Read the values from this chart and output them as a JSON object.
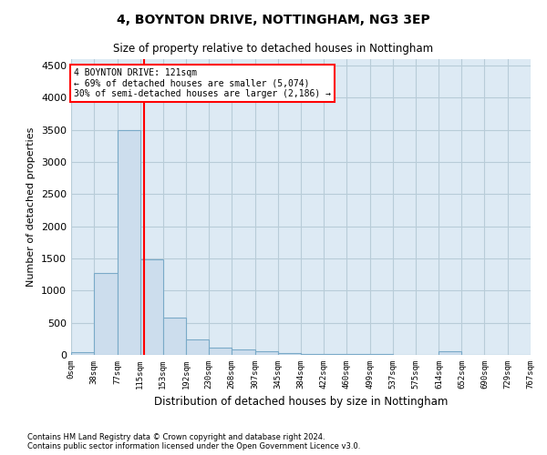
{
  "title": "4, BOYNTON DRIVE, NOTTINGHAM, NG3 3EP",
  "subtitle": "Size of property relative to detached houses in Nottingham",
  "xlabel": "Distribution of detached houses by size in Nottingham",
  "ylabel": "Number of detached properties",
  "bar_color": "#ccdded",
  "bar_edge_color": "#7aaac8",
  "grid_color": "#b8ccd8",
  "background_color": "#ddeaf4",
  "vline_x": 121,
  "vline_color": "red",
  "annotation_title": "4 BOYNTON DRIVE: 121sqm",
  "annotation_line1": "← 69% of detached houses are smaller (5,074)",
  "annotation_line2": "30% of semi-detached houses are larger (2,186) →",
  "annotation_box_color": "red",
  "bin_edges": [
    0,
    38,
    77,
    115,
    153,
    192,
    230,
    268,
    307,
    345,
    384,
    422,
    460,
    499,
    537,
    575,
    614,
    652,
    690,
    729,
    767
  ],
  "bin_heights": [
    40,
    1280,
    3500,
    1480,
    580,
    240,
    115,
    80,
    55,
    30,
    20,
    15,
    12,
    8,
    5,
    5,
    50,
    5,
    5,
    5
  ],
  "ylim": [
    0,
    4600
  ],
  "yticks": [
    0,
    500,
    1000,
    1500,
    2000,
    2500,
    3000,
    3500,
    4000,
    4500
  ],
  "footer_line1": "Contains HM Land Registry data © Crown copyright and database right 2024.",
  "footer_line2": "Contains public sector information licensed under the Open Government Licence v3.0."
}
